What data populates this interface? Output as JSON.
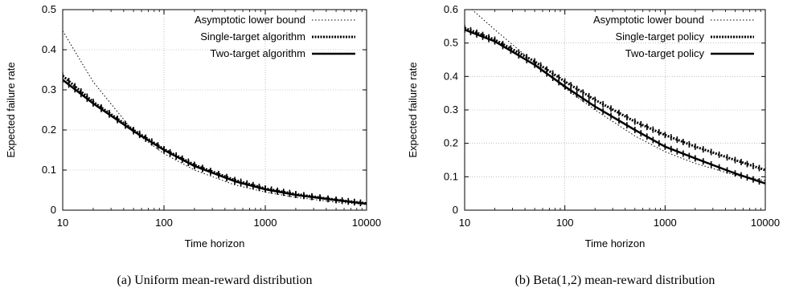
{
  "chart_data": [
    {
      "type": "line",
      "caption": "(a) Uniform mean-reward distribution",
      "xlabel": "Time horizon",
      "ylabel": "Expected failure rate",
      "xscale": "log",
      "xlim": [
        10,
        10000
      ],
      "ylim": [
        0,
        0.5
      ],
      "xticks": [
        "10",
        "100",
        "1000",
        "10000"
      ],
      "yticks": [
        "0",
        "0.1",
        "0.2",
        "0.3",
        "0.4",
        "0.5"
      ],
      "grid": true,
      "legend": "top-right",
      "series": [
        {
          "name": "Asymptotic lower bound",
          "style": "dotted",
          "x": [
            10,
            20,
            50,
            100,
            200,
            500,
            1000,
            2000,
            5000,
            10000
          ],
          "y": [
            0.447,
            0.32,
            0.196,
            0.141,
            0.1,
            0.063,
            0.045,
            0.032,
            0.02,
            0.014
          ]
        },
        {
          "name": "Single-target algorithm",
          "style": "dashed-thick",
          "x": [
            10,
            20,
            50,
            100,
            200,
            500,
            1000,
            2000,
            5000,
            10000
          ],
          "y": [
            0.335,
            0.27,
            0.2,
            0.152,
            0.113,
            0.075,
            0.054,
            0.04,
            0.026,
            0.017
          ]
        },
        {
          "name": "Two-target algorithm",
          "style": "solid-thick",
          "x": [
            10,
            20,
            50,
            100,
            200,
            500,
            1000,
            2000,
            5000,
            10000
          ],
          "y": [
            0.325,
            0.266,
            0.197,
            0.15,
            0.11,
            0.072,
            0.052,
            0.038,
            0.025,
            0.016
          ]
        }
      ]
    },
    {
      "type": "line",
      "caption": "(b) Beta(1,2) mean-reward distribution",
      "xlabel": "Time horizon",
      "ylabel": "Expected failure rate",
      "xscale": "log",
      "xlim": [
        10,
        10000
      ],
      "ylim": [
        0,
        0.6
      ],
      "xticks": [
        "10",
        "100",
        "1000",
        "10000"
      ],
      "yticks": [
        "0",
        "0.1",
        "0.2",
        "0.3",
        "0.4",
        "0.5",
        "0.6"
      ],
      "grid": true,
      "legend": "top-right",
      "series": [
        {
          "name": "Asymptotic lower bound",
          "style": "dotted",
          "x": [
            10,
            20,
            50,
            100,
            200,
            500,
            1000,
            2000,
            5000,
            10000
          ],
          "y": [
            0.62,
            0.54,
            0.44,
            0.365,
            0.3,
            0.222,
            0.175,
            0.14,
            0.105,
            0.088
          ]
        },
        {
          "name": "Single-target policy",
          "style": "dashed-thick",
          "x": [
            10,
            20,
            50,
            100,
            200,
            500,
            1000,
            2000,
            5000,
            10000
          ],
          "y": [
            0.545,
            0.51,
            0.445,
            0.385,
            0.33,
            0.265,
            0.225,
            0.19,
            0.15,
            0.12
          ]
        },
        {
          "name": "Two-target policy",
          "style": "solid-thick",
          "x": [
            10,
            20,
            50,
            100,
            200,
            500,
            1000,
            2000,
            5000,
            10000
          ],
          "y": [
            0.54,
            0.505,
            0.435,
            0.37,
            0.31,
            0.24,
            0.19,
            0.155,
            0.11,
            0.08
          ]
        }
      ]
    }
  ]
}
